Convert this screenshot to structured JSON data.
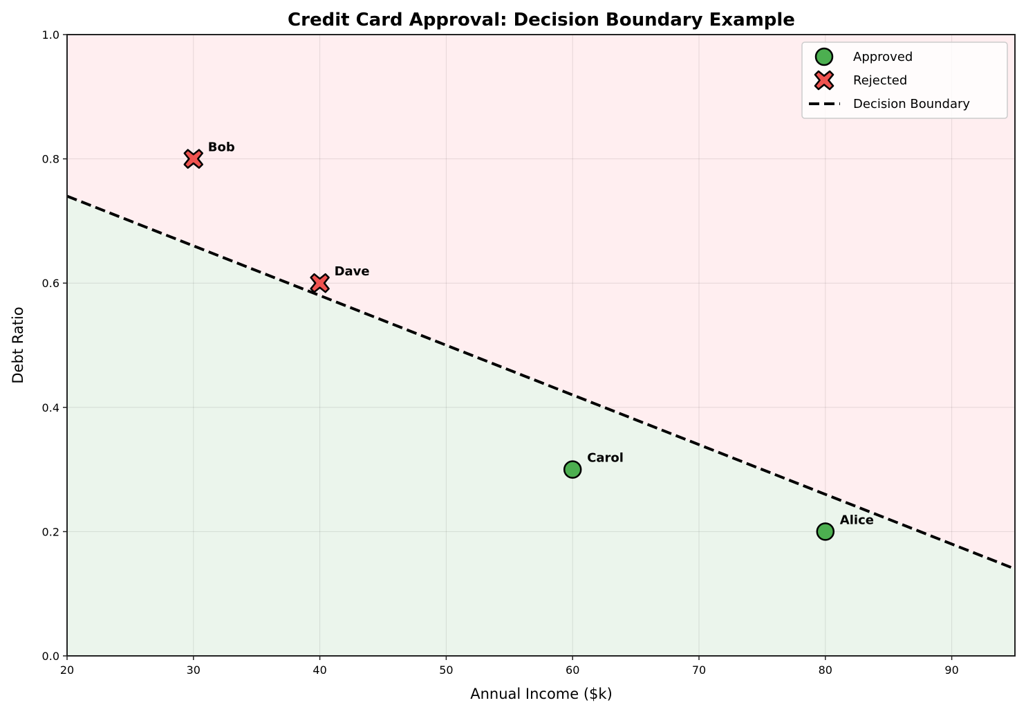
{
  "chart_data": {
    "type": "scatter",
    "title": "Credit Card Approval: Decision Boundary Example",
    "xlabel": "Annual Income ($k)",
    "ylabel": "Debt Ratio",
    "xlim": [
      20,
      95
    ],
    "ylim": [
      0.0,
      1.0
    ],
    "xticks": [
      20,
      30,
      40,
      50,
      60,
      70,
      80,
      90
    ],
    "yticks": [
      0.0,
      0.2,
      0.4,
      0.6,
      0.8,
      1.0
    ],
    "xtick_labels": [
      "20",
      "30",
      "40",
      "50",
      "60",
      "70",
      "80",
      "90"
    ],
    "ytick_labels": [
      "0.0",
      "0.2",
      "0.4",
      "0.6",
      "0.8",
      "1.0"
    ],
    "grid": true,
    "legend_position": "top-right",
    "regions": {
      "approved_color": "#ebf5ec",
      "rejected_color": "#ffeef0"
    },
    "series": [
      {
        "name": "Approved",
        "marker": "circle",
        "color": "#4caf50",
        "points": [
          {
            "label": "Alice",
            "x": 80,
            "y": 0.2
          },
          {
            "label": "Carol",
            "x": 60,
            "y": 0.3
          }
        ]
      },
      {
        "name": "Rejected",
        "marker": "x-filled",
        "color": "#ef5350",
        "points": [
          {
            "label": "Bob",
            "x": 30,
            "y": 0.8
          },
          {
            "label": "Dave",
            "x": 40,
            "y": 0.6
          }
        ]
      }
    ],
    "boundary": {
      "name": "Decision Boundary",
      "style": "dashed",
      "color": "#000000",
      "x": [
        20,
        95
      ],
      "y": [
        0.74,
        0.14
      ]
    },
    "legend": [
      "Approved",
      "Rejected",
      "Decision Boundary"
    ]
  }
}
